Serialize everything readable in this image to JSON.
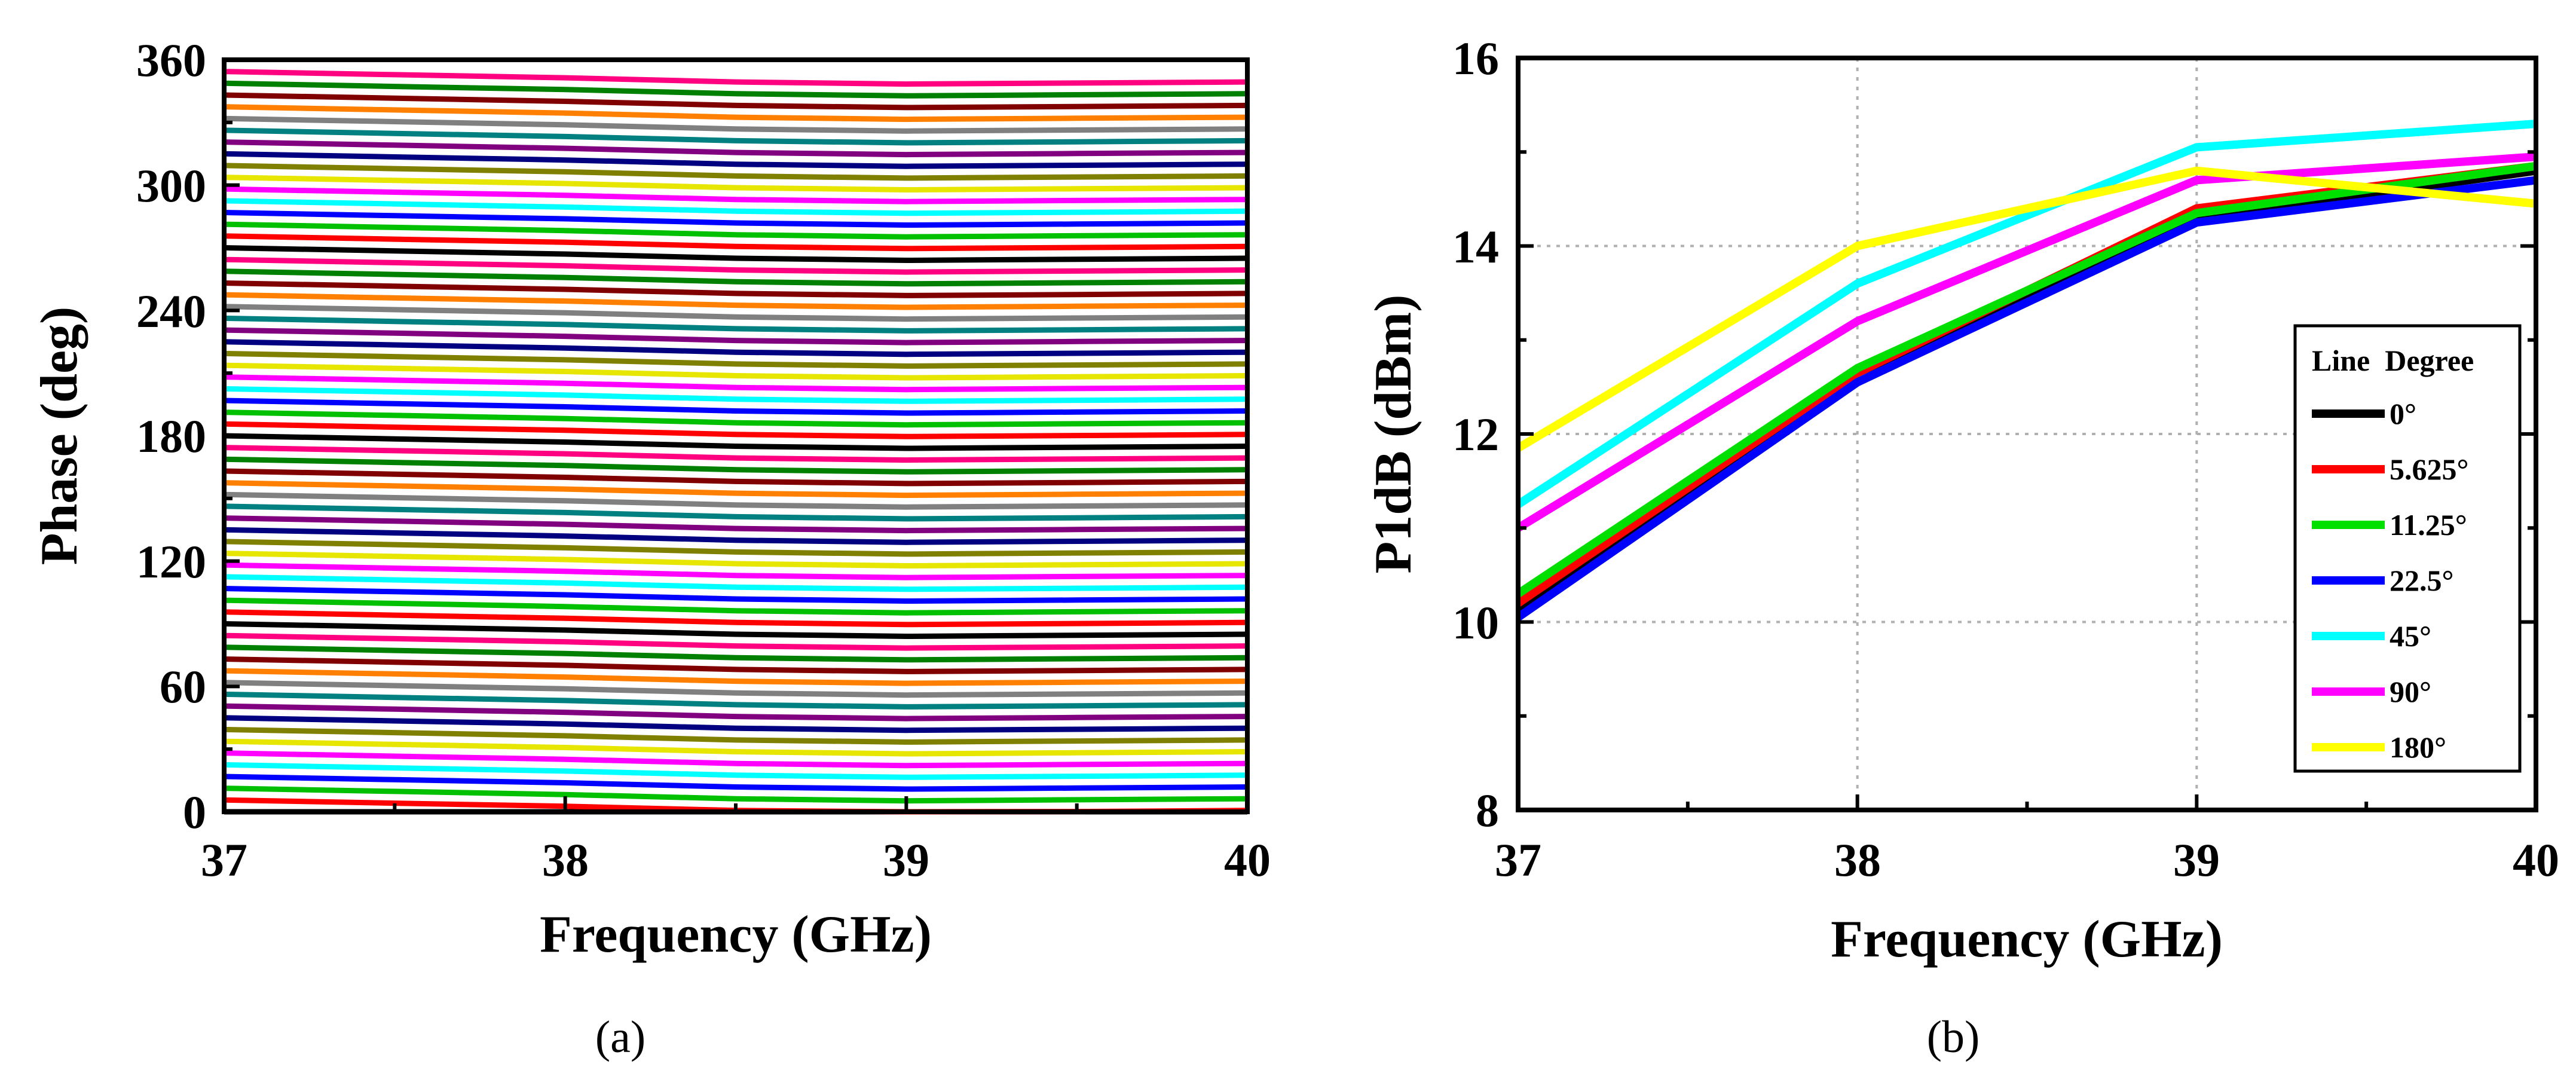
{
  "chart_data": [
    {
      "type": "line",
      "panel": "a",
      "caption": "(a)",
      "xlabel": "Frequency (GHz)",
      "ylabel": "Phase (deg)",
      "xlim": [
        37,
        40
      ],
      "ylim": [
        0,
        360
      ],
      "xticks": [
        "37",
        "38",
        "39",
        "40"
      ],
      "yticks": [
        "0",
        "60",
        "120",
        "180",
        "240",
        "300",
        "360"
      ],
      "grid": false,
      "legend": "none",
      "series_count": 64,
      "x": [
        37,
        37.5,
        38,
        38.5,
        39,
        39.5,
        40
      ],
      "series_offsets": [
        0,
        -1.5,
        -3,
        -5,
        -6,
        -5.5,
        -5
      ],
      "series_start_values": [
        0,
        5.625,
        11.25,
        16.875,
        22.5,
        28.125,
        33.75,
        39.375,
        45,
        50.625,
        56.25,
        61.875,
        67.5,
        73.125,
        78.75,
        84.375,
        90,
        95.625,
        101.25,
        106.875,
        112.5,
        118.125,
        123.75,
        129.375,
        135,
        140.625,
        146.25,
        151.875,
        157.5,
        163.125,
        168.75,
        174.375,
        180,
        185.625,
        191.25,
        196.875,
        202.5,
        208.125,
        213.75,
        219.375,
        225,
        230.625,
        236.25,
        241.875,
        247.5,
        253.125,
        258.75,
        264.375,
        270,
        275.625,
        281.25,
        286.875,
        292.5,
        298.125,
        303.75,
        309.375,
        315,
        320.625,
        326.25,
        331.875,
        337.5,
        343.125,
        348.75,
        354.375
      ],
      "series_colors": [
        "#000000",
        "#ff0000",
        "#00c000",
        "#0000ff",
        "#00ffff",
        "#ff00ff",
        "#e6e600",
        "#808000",
        "#000080",
        "#800080",
        "#008080",
        "#808080",
        "#ff8000",
        "#800000",
        "#008000",
        "#ff0080"
      ]
    },
    {
      "type": "line",
      "panel": "b",
      "caption": "(b)",
      "xlabel": "Frequency (GHz)",
      "ylabel": "P1dB (dBm)",
      "xlim": [
        37,
        40
      ],
      "ylim": [
        8,
        16
      ],
      "xticks": [
        "37",
        "38",
        "39",
        "40"
      ],
      "yticks": [
        "8",
        "10",
        "12",
        "14",
        "16"
      ],
      "grid": true,
      "legend": "right",
      "legend_title": "Line  Degree",
      "x": [
        37,
        38,
        39,
        40
      ],
      "series": [
        {
          "name": "0°",
          "color": "#000000",
          "values": [
            10.15,
            12.65,
            14.3,
            14.8
          ]
        },
        {
          "name": "5.625°",
          "color": "#ff0000",
          "values": [
            10.2,
            12.65,
            14.4,
            14.85
          ]
        },
        {
          "name": "11.25°",
          "color": "#00e000",
          "values": [
            10.3,
            12.7,
            14.35,
            14.85
          ]
        },
        {
          "name": "22.5°",
          "color": "#0000ff",
          "values": [
            10.05,
            12.55,
            14.25,
            14.7
          ]
        },
        {
          "name": "45°",
          "color": "#00ffff",
          "values": [
            11.25,
            13.6,
            15.05,
            15.3
          ]
        },
        {
          "name": "90°",
          "color": "#ff00ff",
          "values": [
            11.0,
            13.2,
            14.7,
            14.95
          ]
        },
        {
          "name": "180°",
          "color": "#ffff00",
          "values": [
            11.85,
            14.0,
            14.8,
            14.45
          ]
        }
      ]
    }
  ]
}
